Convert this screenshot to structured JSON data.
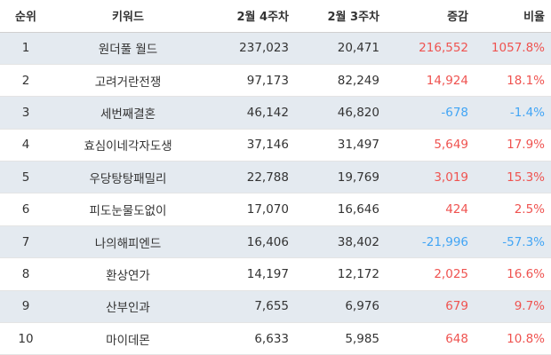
{
  "colors": {
    "positive": "#ef5350",
    "negative": "#42a5f5",
    "stripe": "#e4eaf0"
  },
  "headers": {
    "rank": "순위",
    "keyword": "키워드",
    "week4": "2월 4주차",
    "week3": "2월 3주차",
    "diff": "증감",
    "pct": "비율"
  },
  "rows": [
    {
      "rank": "1",
      "keyword": "원더풀 월드",
      "week4": "237,023",
      "week3": "20,471",
      "diff": "216,552",
      "pct": "1057.8%",
      "sign": "pos"
    },
    {
      "rank": "2",
      "keyword": "고려거란전쟁",
      "week4": "97,173",
      "week3": "82,249",
      "diff": "14,924",
      "pct": "18.1%",
      "sign": "pos"
    },
    {
      "rank": "3",
      "keyword": "세번째결혼",
      "week4": "46,142",
      "week3": "46,820",
      "diff": "-678",
      "pct": "-1.4%",
      "sign": "neg"
    },
    {
      "rank": "4",
      "keyword": "효심이네각자도생",
      "week4": "37,146",
      "week3": "31,497",
      "diff": "5,649",
      "pct": "17.9%",
      "sign": "pos"
    },
    {
      "rank": "5",
      "keyword": "우당탕탕패밀리",
      "week4": "22,788",
      "week3": "19,769",
      "diff": "3,019",
      "pct": "15.3%",
      "sign": "pos"
    },
    {
      "rank": "6",
      "keyword": "피도눈물도없이",
      "week4": "17,070",
      "week3": "16,646",
      "diff": "424",
      "pct": "2.5%",
      "sign": "pos"
    },
    {
      "rank": "7",
      "keyword": "나의해피엔드",
      "week4": "16,406",
      "week3": "38,402",
      "diff": "-21,996",
      "pct": "-57.3%",
      "sign": "neg"
    },
    {
      "rank": "8",
      "keyword": "환상연가",
      "week4": "14,197",
      "week3": "12,172",
      "diff": "2,025",
      "pct": "16.6%",
      "sign": "pos"
    },
    {
      "rank": "9",
      "keyword": "산부인과",
      "week4": "7,655",
      "week3": "6,976",
      "diff": "679",
      "pct": "9.7%",
      "sign": "pos"
    },
    {
      "rank": "10",
      "keyword": "마이데몬",
      "week4": "6,633",
      "week3": "5,985",
      "diff": "648",
      "pct": "10.8%",
      "sign": "pos"
    }
  ]
}
